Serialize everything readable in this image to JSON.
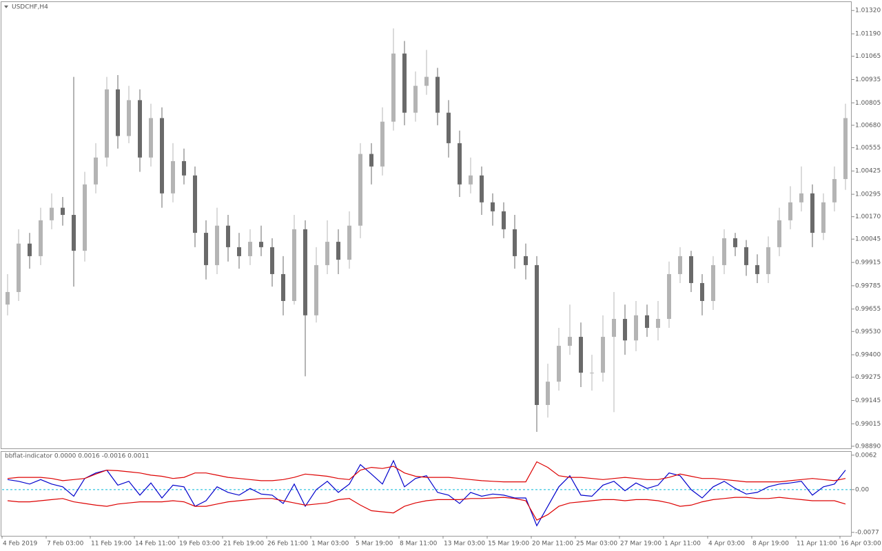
{
  "chart_data": [
    {
      "type": "candlestick",
      "title": "USDCHF,H4",
      "up_color": "#b4b4b4",
      "down_color": "#6a6a6a",
      "open": [
        0.9968,
        0.9975,
        1.0002,
        0.9995,
        1.0015,
        1.0022,
        1.0018,
        0.9998,
        1.0035,
        1.005,
        1.0088,
        1.0062,
        1.0082,
        1.005,
        1.0072,
        1.003,
        1.0048,
        1.004,
        1.0008,
        0.999,
        1.0012,
        1.0,
        0.9995,
        1.0003,
        1.0,
        0.9985,
        0.997,
        1.001,
        0.9962,
        0.999,
        1.0003,
        0.9993,
        1.0012,
        1.0052,
        1.0045,
        1.007,
        1.0108,
        1.0075,
        1.009,
        1.0095,
        1.0075,
        1.0058,
        1.0035,
        1.004,
        1.0025,
        1.002,
        1.001,
        0.9995,
        0.999,
        0.9912,
        0.9925,
        0.9945,
        0.995,
        0.993,
        0.993,
        0.995,
        0.996,
        0.9948,
        0.9962,
        0.9955,
        0.996,
        0.9985,
        0.9995,
        0.998,
        0.997,
        0.999,
        1.0005,
        1.0,
        0.999,
        0.9985,
        1.0,
        1.0015,
        1.0025,
        1.003,
        1.0008,
        1.0025,
        1.0038
      ],
      "high": [
        0.9985,
        1.001,
        1.0008,
        1.0022,
        1.003,
        1.0028,
        1.0095,
        1.0042,
        1.0058,
        1.0095,
        1.0096,
        1.009,
        1.0088,
        1.008,
        1.0078,
        1.0058,
        1.0055,
        1.0045,
        1.0015,
        1.0022,
        1.0018,
        1.0008,
        1.001,
        1.0012,
        1.0005,
        0.9995,
        1.0018,
        1.0015,
        1.0,
        1.0015,
        1.001,
        1.002,
        1.0058,
        1.0058,
        1.0078,
        1.0122,
        1.0115,
        1.0098,
        1.011,
        1.01,
        1.0082,
        1.0065,
        1.005,
        1.0045,
        1.003,
        1.0025,
        1.0018,
        1.0002,
        0.9995,
        0.9935,
        0.9955,
        0.9968,
        0.9958,
        0.994,
        0.9962,
        0.9975,
        0.9968,
        0.997,
        0.9968,
        0.997,
        0.9992,
        1.0,
        0.9998,
        0.9985,
        0.9995,
        1.001,
        1.0008,
        1.0004,
        0.9996,
        1.0006,
        1.0022,
        1.0034,
        1.0045,
        1.0035,
        1.003,
        1.0045,
        1.008
      ],
      "low": [
        0.9962,
        0.997,
        0.9988,
        0.999,
        1.001,
        1.0012,
        0.9978,
        0.9992,
        1.003,
        1.0045,
        1.0055,
        1.0058,
        1.0042,
        1.0045,
        1.0022,
        1.0025,
        1.0035,
        1.0,
        0.9982,
        0.9985,
        0.9992,
        0.9988,
        0.999,
        0.9995,
        0.9978,
        0.9962,
        0.9968,
        0.9928,
        0.9958,
        0.9985,
        0.9985,
        0.9988,
        1.0005,
        1.0035,
        1.004,
        1.0065,
        1.0068,
        1.007,
        1.0085,
        1.0068,
        1.005,
        1.0028,
        1.003,
        1.0018,
        1.0012,
        1.0005,
        0.9988,
        0.9982,
        0.9897,
        0.9905,
        0.992,
        0.994,
        0.9922,
        0.992,
        0.9925,
        0.9908,
        0.994,
        0.9942,
        0.995,
        0.9948,
        0.9955,
        0.998,
        0.9975,
        0.9962,
        0.9965,
        0.9985,
        0.9995,
        0.9984,
        0.998,
        0.998,
        0.9995,
        1.001,
        1.002,
        1.0,
        1.0004,
        1.002,
        1.0032
      ],
      "close": [
        0.9975,
        1.0002,
        0.9995,
        1.0015,
        1.0022,
        1.0018,
        0.9998,
        1.0035,
        1.005,
        1.0088,
        1.0062,
        1.0082,
        1.005,
        1.0072,
        1.003,
        1.0048,
        1.004,
        1.0008,
        0.999,
        1.0012,
        1.0,
        0.9995,
        1.0003,
        1.0,
        0.9985,
        0.997,
        1.001,
        0.9962,
        0.999,
        1.0003,
        0.9993,
        1.0012,
        1.0052,
        1.0045,
        1.007,
        1.0108,
        1.0075,
        1.009,
        1.0095,
        1.0075,
        1.0058,
        1.0035,
        1.004,
        1.0025,
        1.002,
        1.001,
        0.9995,
        0.999,
        0.9912,
        0.9925,
        0.9945,
        0.995,
        0.993,
        0.993,
        0.995,
        0.996,
        0.9948,
        0.9962,
        0.9955,
        0.996,
        0.9985,
        0.9995,
        0.998,
        0.997,
        0.999,
        1.0005,
        1.0,
        0.999,
        0.9985,
        1.0,
        1.0015,
        1.0025,
        1.003,
        1.0008,
        1.0025,
        1.0038,
        1.0072
      ],
      "ylim": [
        0.98878,
        1.01367
      ],
      "yticks": [
        {
          "value": 1.0132,
          "label": "1.01320"
        },
        {
          "value": 1.0119,
          "label": "1.01190"
        },
        {
          "value": 1.01065,
          "label": "1.01065"
        },
        {
          "value": 1.00935,
          "label": "1.00935"
        },
        {
          "value": 1.00805,
          "label": "1.00805"
        },
        {
          "value": 1.0068,
          "label": "1.00680"
        },
        {
          "value": 1.00555,
          "label": "1.00555"
        },
        {
          "value": 1.00425,
          "label": "1.00425"
        },
        {
          "value": 1.00295,
          "label": "1.00295"
        },
        {
          "value": 1.0017,
          "label": "1.00170"
        },
        {
          "value": 1.00045,
          "label": "1.00045"
        },
        {
          "value": 0.99915,
          "label": "0.99915"
        },
        {
          "value": 0.99785,
          "label": "0.99785"
        },
        {
          "value": 0.99655,
          "label": "0.99655"
        },
        {
          "value": 0.9953,
          "label": "0.99530"
        },
        {
          "value": 0.994,
          "label": "0.99400"
        },
        {
          "value": 0.99275,
          "label": "0.99275"
        },
        {
          "value": 0.99145,
          "label": "0.99145"
        },
        {
          "value": 0.99015,
          "label": "0.99015"
        },
        {
          "value": 0.9889,
          "label": "0.98890"
        }
      ]
    },
    {
      "type": "line",
      "title": "bbflat-indicator 0.0000 0.0016 -0.0016 0.0011",
      "series": [
        {
          "color": "#0000cc",
          "values": [
            0.0018,
            0.0015,
            0.001,
            0.0018,
            0.001,
            0.0005,
            -0.0012,
            0.002,
            0.003,
            0.0035,
            0.0008,
            0.0015,
            -0.001,
            0.0012,
            -0.0015,
            0.0008,
            0.0005,
            -0.003,
            -0.002,
            0.0005,
            -0.0005,
            -0.001,
            0.0002,
            -0.0008,
            -0.001,
            -0.0025,
            0.001,
            -0.003,
            0.0,
            0.0015,
            -0.0005,
            0.001,
            0.0045,
            0.0028,
            0.001,
            0.0052,
            0.0005,
            0.002,
            0.0025,
            -0.0005,
            -0.001,
            -0.0025,
            -0.0005,
            -0.0012,
            -0.0008,
            -0.001,
            -0.0015,
            -0.0015,
            -0.0065,
            -0.003,
            0.0005,
            0.0025,
            -0.001,
            -0.0012,
            0.0008,
            0.0015,
            -0.0002,
            0.0012,
            0.0002,
            0.0008,
            0.003,
            0.0025,
            0.0,
            -0.0015,
            0.0005,
            0.0015,
            0.0002,
            -0.0008,
            -0.0005,
            0.0005,
            0.001,
            0.0012,
            0.0015,
            -0.001,
            0.0005,
            0.001,
            0.0035
          ]
        },
        {
          "color": "#dd0000",
          "values": [
            0.002,
            0.0022,
            0.0022,
            0.0022,
            0.002,
            0.0016,
            0.0018,
            0.002,
            0.0028,
            0.0035,
            0.0034,
            0.0032,
            0.003,
            0.0026,
            0.0024,
            0.002,
            0.0022,
            0.003,
            0.003,
            0.0026,
            0.0022,
            0.002,
            0.0018,
            0.0016,
            0.0016,
            0.0018,
            0.0022,
            0.0028,
            0.0026,
            0.0024,
            0.002,
            0.0018,
            0.0035,
            0.004,
            0.0038,
            0.0042,
            0.003,
            0.0024,
            0.0022,
            0.0022,
            0.0022,
            0.002,
            0.0018,
            0.0016,
            0.0015,
            0.0014,
            0.0014,
            0.0014,
            0.005,
            0.004,
            0.0025,
            0.0022,
            0.0022,
            0.002,
            0.0018,
            0.002,
            0.0022,
            0.002,
            0.0018,
            0.0018,
            0.0022,
            0.0028,
            0.0024,
            0.002,
            0.002,
            0.0018,
            0.0016,
            0.0014,
            0.0014,
            0.0014,
            0.0014,
            0.0016,
            0.0018,
            0.002,
            0.0018,
            0.0016,
            0.002
          ]
        },
        {
          "color": "#dd0000",
          "values": [
            -0.002,
            -0.0022,
            -0.0022,
            -0.002,
            -0.0018,
            -0.0016,
            -0.0022,
            -0.0025,
            -0.0028,
            -0.003,
            -0.0026,
            -0.0024,
            -0.0022,
            -0.0022,
            -0.0022,
            -0.002,
            -0.0022,
            -0.003,
            -0.003,
            -0.0026,
            -0.0022,
            -0.002,
            -0.0018,
            -0.0016,
            -0.0016,
            -0.002,
            -0.0024,
            -0.0028,
            -0.0026,
            -0.0024,
            -0.0018,
            -0.0016,
            -0.0028,
            -0.0038,
            -0.004,
            -0.0042,
            -0.003,
            -0.0024,
            -0.002,
            -0.0018,
            -0.0018,
            -0.0018,
            -0.0016,
            -0.0016,
            -0.0015,
            -0.0014,
            -0.0016,
            -0.002,
            -0.0055,
            -0.0045,
            -0.003,
            -0.0024,
            -0.0022,
            -0.002,
            -0.0018,
            -0.0018,
            -0.002,
            -0.0018,
            -0.0018,
            -0.002,
            -0.0024,
            -0.003,
            -0.0028,
            -0.0022,
            -0.0018,
            -0.0016,
            -0.0014,
            -0.0014,
            -0.0016,
            -0.0016,
            -0.0014,
            -0.0016,
            -0.0018,
            -0.002,
            -0.002,
            -0.002,
            -0.0026
          ]
        }
      ],
      "level": 0,
      "level_color": "#00b8d8",
      "ylim": [
        -0.0082,
        0.0068
      ],
      "yticks": [
        {
          "value": 0.0062,
          "label": "0.0062"
        },
        {
          "value": 0,
          "label": "0.00"
        },
        {
          "value": -0.0077,
          "label": "-0.0077"
        }
      ],
      "xticks": [
        {
          "value": 0,
          "label": "4 Feb 2019"
        },
        {
          "value": 4,
          "label": "7 Feb 03:00"
        },
        {
          "value": 8,
          "label": "11 Feb 19:00"
        },
        {
          "value": 12,
          "label": "14 Feb 11:00"
        },
        {
          "value": 16,
          "label": "19 Feb 03:00"
        },
        {
          "value": 20,
          "label": "21 Feb 19:00"
        },
        {
          "value": 24,
          "label": "26 Feb 11:00"
        },
        {
          "value": 28,
          "label": "1 Mar 03:00"
        },
        {
          "value": 32,
          "label": "5 Mar 19:00"
        },
        {
          "value": 36,
          "label": "8 Mar 11:00"
        },
        {
          "value": 40,
          "label": "13 Mar 03:00"
        },
        {
          "value": 44,
          "label": "15 Mar 19:00"
        },
        {
          "value": 48,
          "label": "20 Mar 11:00"
        },
        {
          "value": 52,
          "label": "25 Mar 03:00"
        },
        {
          "value": 56,
          "label": "27 Mar 19:00"
        },
        {
          "value": 60,
          "label": "1 Apr 11:00"
        },
        {
          "value": 64,
          "label": "4 Apr 03:00"
        },
        {
          "value": 68,
          "label": "8 Apr 19:00"
        },
        {
          "value": 72,
          "label": "11 Apr 11:00"
        },
        {
          "value": 76,
          "label": "16 Apr 03:00"
        }
      ]
    }
  ]
}
